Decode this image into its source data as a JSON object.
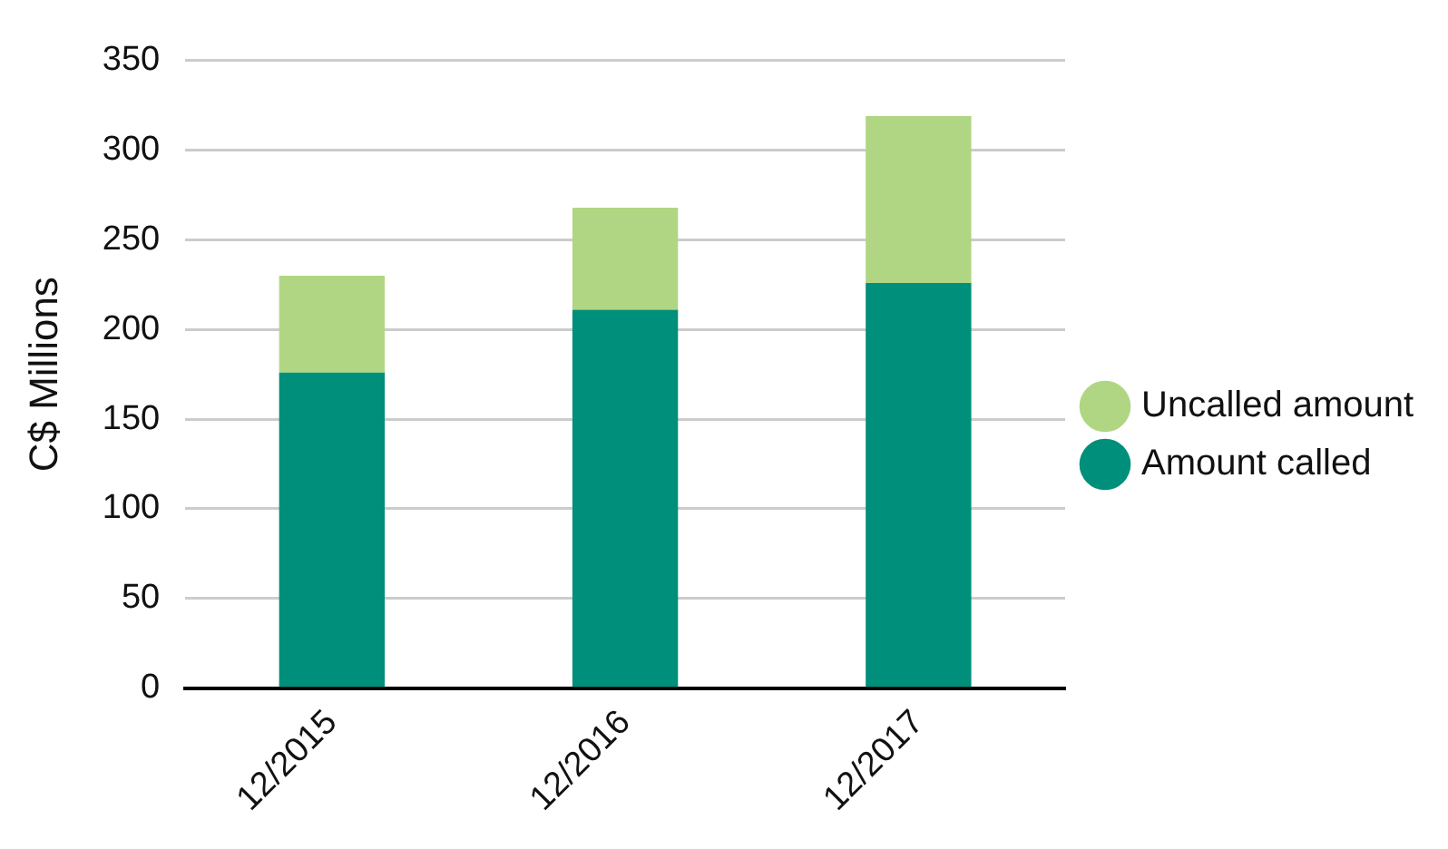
{
  "chart_data": {
    "type": "bar",
    "stacked": true,
    "ylabel": "C$ Millions",
    "categories": [
      "12/2015",
      "12/2016",
      "12/2017"
    ],
    "series": [
      {
        "name": "Amount called",
        "color": "#008f7a",
        "values": [
          176,
          211,
          226
        ]
      },
      {
        "name": "Uncalled amount",
        "color": "#b0d683",
        "values": [
          54,
          57,
          93
        ]
      }
    ],
    "ylim": [
      0,
      350
    ],
    "yticks": [
      0,
      50,
      100,
      150,
      200,
      250,
      300,
      350
    ],
    "grid": "y",
    "legend": "right"
  }
}
